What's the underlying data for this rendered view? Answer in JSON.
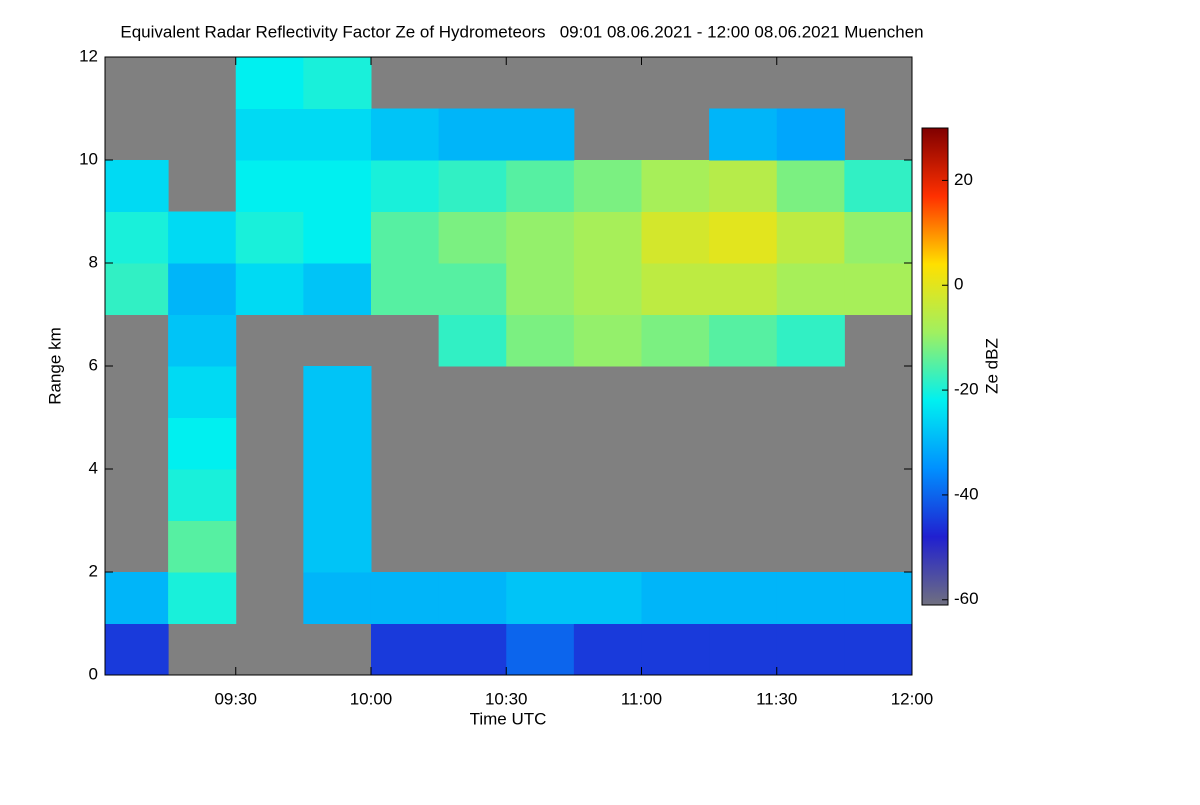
{
  "chart_data": {
    "type": "heatmap",
    "title": "Equivalent Radar Reflectivity Factor Ze of Hydrometeors   09:01 08.06.2021 - 12:00 08.06.2021 Muenchen",
    "x_label": "Time UTC",
    "y_label": "Range km",
    "colorbar_label": "Ze dBZ",
    "xlim": [
      541,
      720
    ],
    "xticks": [
      {
        "value": 570,
        "label": "09:30"
      },
      {
        "value": 600,
        "label": "10:00"
      },
      {
        "value": 630,
        "label": "10:30"
      },
      {
        "value": 660,
        "label": "11:00"
      },
      {
        "value": 690,
        "label": "11:30"
      },
      {
        "value": 720,
        "label": "12:00"
      }
    ],
    "ylim": [
      0,
      12
    ],
    "yticks": [
      0,
      2,
      4,
      6,
      8,
      10,
      12
    ],
    "x_bins": [
      540,
      555,
      570,
      585,
      600,
      615,
      630,
      645,
      660,
      675,
      690,
      705,
      720
    ],
    "y_bins": [
      0,
      1,
      2,
      3,
      4,
      5,
      6,
      7,
      8,
      9,
      10,
      11,
      12
    ],
    "values": [
      [
        -45,
        null,
        null,
        null,
        -45,
        -45,
        -40,
        -45,
        -45,
        -45,
        -45,
        -45
      ],
      [
        -30,
        -20,
        null,
        -30,
        -30,
        -30,
        -28,
        -28,
        -30,
        -30,
        -30,
        -30
      ],
      [
        null,
        -15,
        null,
        -28,
        null,
        null,
        null,
        null,
        null,
        null,
        null,
        null
      ],
      [
        null,
        -20,
        null,
        -28,
        null,
        null,
        null,
        null,
        null,
        null,
        null,
        null
      ],
      [
        null,
        -22,
        null,
        -28,
        null,
        null,
        null,
        null,
        null,
        null,
        null,
        null
      ],
      [
        null,
        -25,
        null,
        -28,
        null,
        null,
        null,
        null,
        null,
        null,
        null,
        null
      ],
      [
        null,
        -28,
        null,
        null,
        null,
        -18,
        -12,
        -10,
        -12,
        -15,
        -18,
        null
      ],
      [
        -18,
        -30,
        -25,
        -28,
        -15,
        -15,
        -10,
        -8,
        -5,
        -5,
        -8,
        -8
      ],
      [
        -20,
        -25,
        -20,
        -22,
        -15,
        -12,
        -10,
        -8,
        -2,
        0,
        -5,
        -10
      ],
      [
        -25,
        null,
        -22,
        -22,
        -20,
        -18,
        -15,
        -12,
        -8,
        -6,
        -12,
        -18
      ],
      [
        null,
        null,
        -25,
        -25,
        -28,
        -30,
        -30,
        null,
        null,
        -30,
        -32,
        null
      ],
      [
        null,
        null,
        -22,
        -20,
        null,
        null,
        null,
        null,
        null,
        null,
        null,
        null
      ]
    ],
    "no_echo_color": "#808080",
    "clim": [
      -61,
      30
    ],
    "cticks": [
      20,
      0,
      -20,
      -40,
      -60
    ],
    "colormap": [
      "#707080",
      "#2020d0",
      "#0090ff",
      "#00f0f0",
      "#a0f060",
      "#ffe000",
      "#ff3000",
      "#800000"
    ]
  }
}
